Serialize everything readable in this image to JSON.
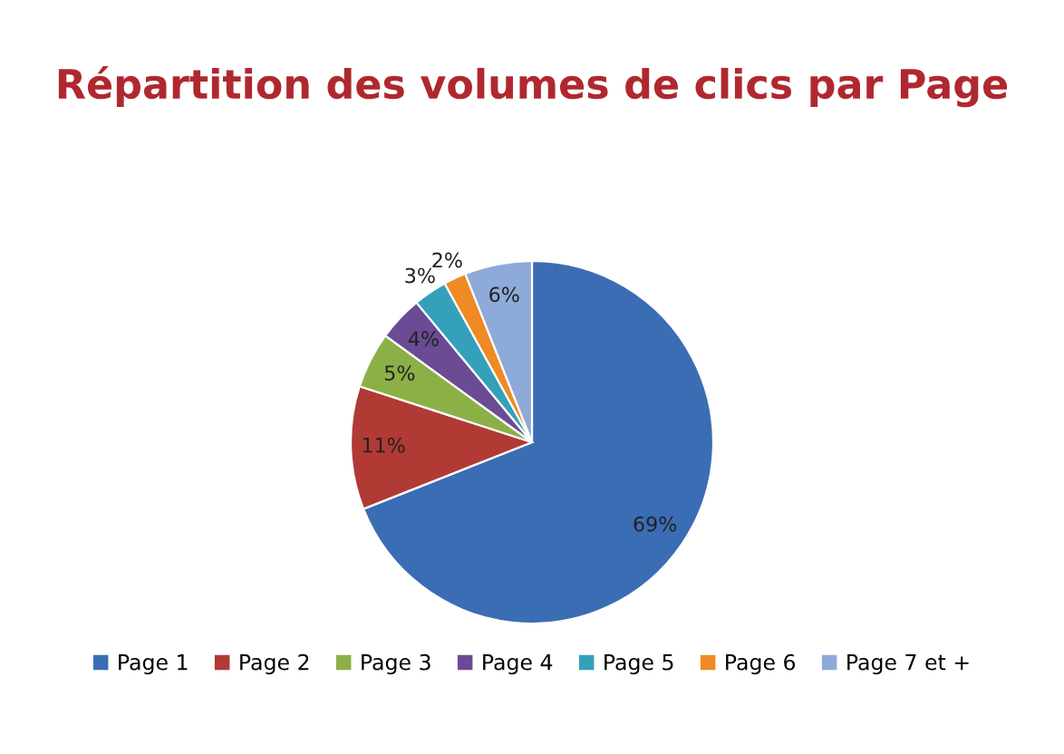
{
  "chart_data": {
    "type": "pie",
    "title": "Répartition des volumes de clics par Page",
    "categories": [
      "Page 1",
      "Page 2",
      "Page 3",
      "Page 4",
      "Page 5",
      "Page 6",
      "Page 7 et +"
    ],
    "values": [
      69,
      11,
      5,
      4,
      3,
      2,
      6
    ],
    "value_labels": [
      "69%",
      "11%",
      "5%",
      "4%",
      "3%",
      "2%",
      "6%"
    ],
    "colors": [
      "#3b6db4",
      "#b13a35",
      "#8bb046",
      "#6b4b94",
      "#34a0ba",
      "#ef8a25",
      "#8eaad8"
    ],
    "legend": "bottom"
  }
}
